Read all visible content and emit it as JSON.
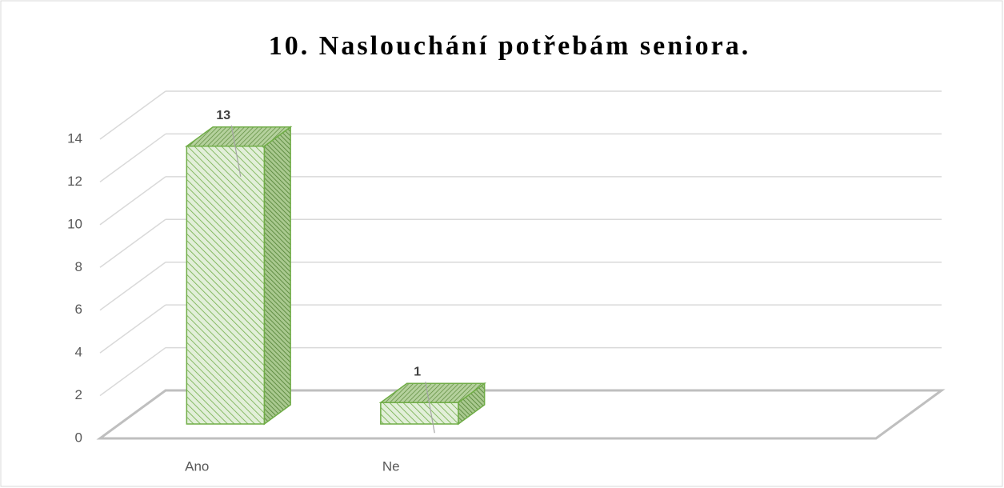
{
  "chart_data": {
    "type": "bar3d",
    "title": "10. Naslouchání potřebám seniora.",
    "categories": [
      "Ano",
      "Ne",
      null,
      null
    ],
    "values": [
      13,
      1,
      null,
      null
    ],
    "color": "#70ad47",
    "ylim": [
      0,
      14
    ],
    "yticks": [
      0,
      2,
      4,
      6,
      8,
      10,
      12,
      14
    ],
    "grid": true
  }
}
